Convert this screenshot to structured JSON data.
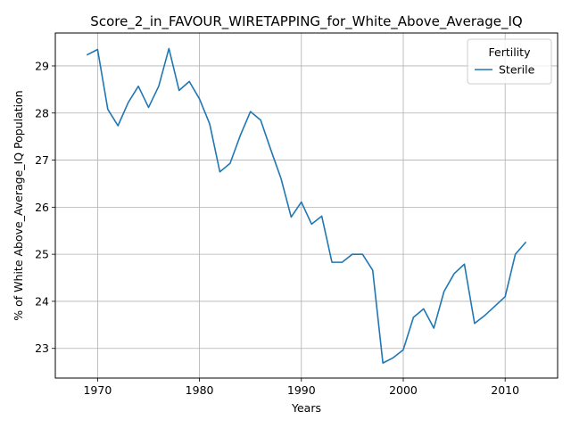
{
  "chart_data": {
    "type": "line",
    "title": "Score_2_in_FAVOUR_WIRETAPPING_for_White_Above_Average_IQ",
    "xlabel": "Years",
    "ylabel": "% of White Above_Average_IQ Population",
    "xlim": [
      1965.85,
      2015.15
    ],
    "ylim": [
      22.37,
      29.7
    ],
    "xticks": [
      1970,
      1980,
      1990,
      2000,
      2010
    ],
    "yticks": [
      23,
      24,
      25,
      26,
      27,
      28,
      29
    ],
    "grid": true,
    "legend": {
      "title": "Fertility",
      "position": "top-right"
    },
    "series": [
      {
        "name": "Sterile",
        "color": "#1f77b4",
        "x": [
          1969,
          1970,
          1971,
          1972,
          1973,
          1974,
          1975,
          1976,
          1977,
          1978,
          1979,
          1980,
          1981,
          1982,
          1983,
          1984,
          1985,
          1986,
          1987,
          1988,
          1989,
          1990,
          1991,
          1992,
          1993,
          1994,
          1995,
          1996,
          1997,
          1998,
          1999,
          2000,
          2001,
          2002,
          2003,
          2004,
          2005,
          2006,
          2007,
          2008,
          2010,
          2011,
          2012
        ],
        "values": [
          29.24,
          29.35,
          28.08,
          27.73,
          28.22,
          28.57,
          28.12,
          28.57,
          29.37,
          28.48,
          28.67,
          28.3,
          27.77,
          26.75,
          26.93,
          27.52,
          28.03,
          27.85,
          27.22,
          26.61,
          25.79,
          26.11,
          25.64,
          25.81,
          24.83,
          24.83,
          25.0,
          25.0,
          24.66,
          22.69,
          22.8,
          22.97,
          23.66,
          23.84,
          23.43,
          24.21,
          24.59,
          24.79,
          23.53,
          23.7,
          24.1,
          25.0,
          25.25
        ]
      }
    ]
  }
}
